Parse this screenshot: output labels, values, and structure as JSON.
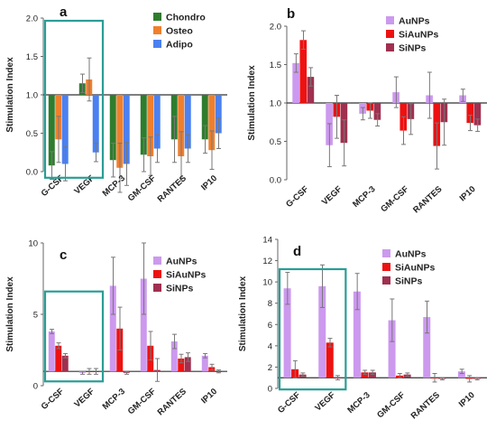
{
  "chart_data": [
    {
      "panel": "a",
      "type": "bar",
      "ylabel": "Stimulation Index",
      "ylim": [
        0,
        2
      ],
      "yticks": [
        "0.0",
        "0.5",
        "1.0",
        "1.5",
        "2.0"
      ],
      "tick_values": [
        0,
        0.5,
        1,
        1.5,
        2
      ],
      "baseline": 1,
      "categories": [
        "G-CSF",
        "VEGF",
        "MCP-3",
        "GM-CSF",
        "RANTES",
        "IP10"
      ],
      "legend_position": "top-right",
      "highlight": [
        "G-CSF",
        "VEGF"
      ],
      "series": [
        {
          "name": "Chondro",
          "color": "#2e7d2e",
          "values": [
            0.08,
            1.15,
            0.15,
            0.22,
            0.42,
            0.42
          ],
          "err": [
            0.18,
            0.12,
            0.22,
            0.22,
            0.3,
            0.18
          ]
        },
        {
          "name": "Osteo",
          "color": "#f07f2c",
          "values": [
            0.42,
            1.2,
            0.05,
            0.2,
            0.2,
            0.28
          ],
          "err": [
            0.3,
            0.28,
            0.32,
            0.25,
            0.32,
            0.25
          ]
        },
        {
          "name": "Adipo",
          "color": "#4a80f0",
          "values": [
            0.1,
            0.25,
            0.1,
            0.3,
            0.3,
            0.5
          ],
          "err": [
            0.22,
            0.12,
            0.28,
            0.18,
            0.18,
            0.2
          ]
        }
      ]
    },
    {
      "panel": "b",
      "type": "bar",
      "ylabel": "Stimulation Index",
      "ylim": [
        0,
        2
      ],
      "yticks": [
        "0.0",
        "0.5",
        "1.0",
        "1.5",
        "2.0"
      ],
      "tick_values": [
        0,
        0.5,
        1,
        1.5,
        2
      ],
      "baseline": 1,
      "categories": [
        "G-CSF",
        "VEGF",
        "MCP-3",
        "GM-CSF",
        "RANTES",
        "IP10"
      ],
      "legend_position": "top-right",
      "highlight": [],
      "series": [
        {
          "name": "AuNPs",
          "color": "#cc99ee",
          "values": [
            1.52,
            0.45,
            0.86,
            1.14,
            1.1,
            1.1
          ],
          "err": [
            0.12,
            0.28,
            0.08,
            0.2,
            0.3,
            0.08
          ]
        },
        {
          "name": "SiAuNPs",
          "color": "#ee1111",
          "values": [
            1.82,
            0.82,
            0.9,
            0.64,
            0.44,
            0.74
          ],
          "err": [
            0.12,
            0.28,
            0.1,
            0.18,
            0.3,
            0.1
          ]
        },
        {
          "name": "SiNPs",
          "color": "#a0304f",
          "values": [
            1.34,
            0.48,
            0.78,
            0.79,
            0.75,
            0.71
          ],
          "err": [
            0.12,
            0.3,
            0.08,
            0.2,
            0.3,
            0.08
          ]
        }
      ]
    },
    {
      "panel": "c",
      "type": "bar",
      "ylabel": "Stimulation Index",
      "ylim": [
        0,
        10
      ],
      "yticks": [
        "0",
        "5",
        "10"
      ],
      "tick_values": [
        0,
        5,
        10
      ],
      "baseline": 1,
      "categories": [
        "G-CSF",
        "VEGF",
        "MCP-3",
        "GM-CSF",
        "RANTES",
        "IP10"
      ],
      "legend_position": "top-right",
      "highlight": [
        "G-CSF",
        "VEGF"
      ],
      "series": [
        {
          "name": "AuNPs",
          "color": "#cc99ee",
          "values": [
            3.8,
            0.9,
            7.0,
            7.5,
            3.1,
            2.1
          ],
          "err": [
            0.15,
            0.1,
            2.0,
            2.5,
            0.5,
            0.15
          ]
        },
        {
          "name": "SiAuNPs",
          "color": "#ee1111",
          "values": [
            2.8,
            1.0,
            4.0,
            2.8,
            1.9,
            1.3
          ],
          "err": [
            0.2,
            0.2,
            1.5,
            1.0,
            0.3,
            0.2
          ]
        },
        {
          "name": "SiNPs",
          "color": "#a0304f",
          "values": [
            2.1,
            1.0,
            0.9,
            1.1,
            2.0,
            1.0
          ],
          "err": [
            0.15,
            0.2,
            0.1,
            0.8,
            0.3,
            0.1
          ]
        }
      ]
    },
    {
      "panel": "d",
      "type": "bar",
      "ylabel": "Stimulation Index",
      "ylim": [
        0,
        14
      ],
      "yticks": [
        "0",
        "2",
        "4",
        "6",
        "8",
        "10",
        "12",
        "14"
      ],
      "tick_values": [
        0,
        2,
        4,
        6,
        8,
        10,
        12,
        14
      ],
      "baseline": 1,
      "categories": [
        "G-CSF",
        "VEGF",
        "MCP-3",
        "GM-CSF",
        "RANTES",
        "IP10"
      ],
      "legend_position": "top-right",
      "highlight": [
        "G-CSF",
        "VEGF"
      ],
      "series": [
        {
          "name": "AuNPs",
          "color": "#cc99ee",
          "values": [
            9.4,
            9.6,
            9.1,
            6.4,
            6.7,
            1.6
          ],
          "err": [
            1.5,
            2.0,
            1.7,
            2.0,
            1.5,
            0.2
          ]
        },
        {
          "name": "SiAuNPs",
          "color": "#ee1111",
          "values": [
            1.8,
            4.3,
            1.5,
            1.2,
            1.0,
            0.9
          ],
          "err": [
            0.8,
            0.4,
            0.2,
            0.2,
            0.4,
            0.3
          ]
        },
        {
          "name": "SiNPs",
          "color": "#a0304f",
          "values": [
            1.3,
            1.0,
            1.5,
            1.3,
            0.9,
            0.9
          ],
          "err": [
            0.15,
            0.2,
            0.2,
            0.15,
            0.1,
            0.1
          ]
        }
      ]
    }
  ]
}
